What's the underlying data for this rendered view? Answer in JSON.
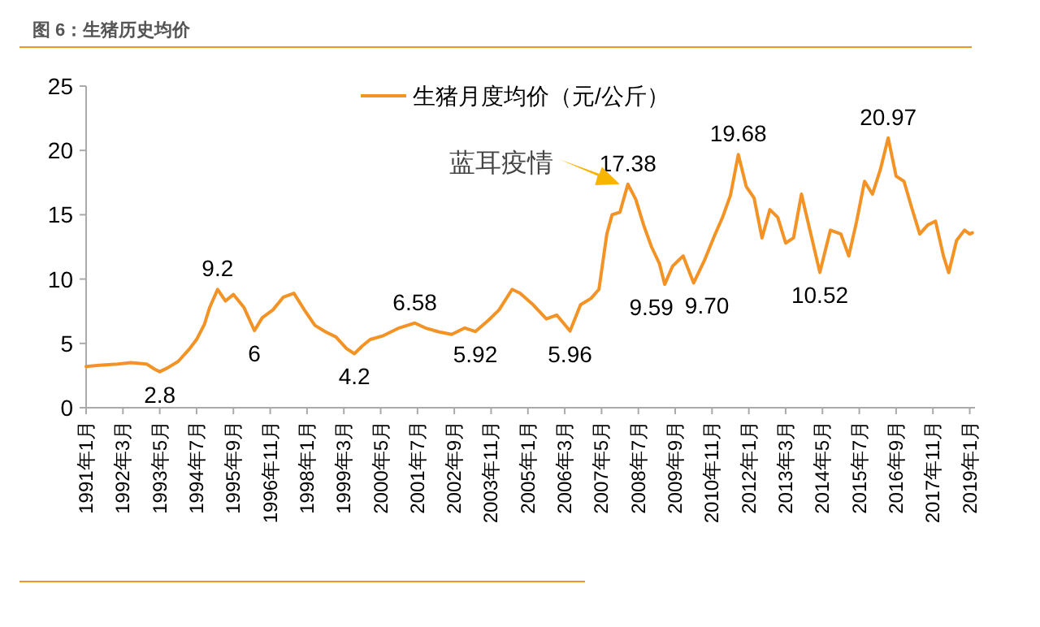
{
  "chart_data": {
    "type": "line",
    "title": "图 6：生猪历史均价",
    "x": [
      "1991-01",
      "1991-06",
      "1992-01",
      "1992-06",
      "1992-12",
      "1993-03",
      "1993-05",
      "1993-08",
      "1993-12",
      "1994-04",
      "1994-07",
      "1994-10",
      "1994-12",
      "1995-03",
      "1995-06",
      "1995-09",
      "1996-01",
      "1996-05",
      "1996-08",
      "1996-12",
      "1997-04",
      "1997-08",
      "1997-12",
      "1998-04",
      "1998-08",
      "1998-12",
      "1999-04",
      "1999-07",
      "1999-10",
      "2000-01",
      "2000-06",
      "2000-12",
      "2001-06",
      "2001-10",
      "2002-03",
      "2002-08",
      "2003-01",
      "2003-05",
      "2003-10",
      "2004-02",
      "2004-07",
      "2004-10",
      "2005-03",
      "2005-08",
      "2005-12",
      "2006-05",
      "2006-09",
      "2007-01",
      "2007-04",
      "2007-07",
      "2007-09",
      "2007-12",
      "2008-03",
      "2008-06",
      "2008-09",
      "2008-12",
      "2009-03",
      "2009-05",
      "2009-08",
      "2009-12",
      "2010-04",
      "2010-08",
      "2010-12",
      "2011-03",
      "2011-06",
      "2011-09",
      "2011-12",
      "2012-03",
      "2012-06",
      "2012-09",
      "2012-12",
      "2013-03",
      "2013-06",
      "2013-09",
      "2013-12",
      "2014-04",
      "2014-08",
      "2014-12",
      "2015-03",
      "2015-06",
      "2015-09",
      "2015-12",
      "2016-03",
      "2016-06",
      "2016-09",
      "2016-12",
      "2017-03",
      "2017-06",
      "2017-09",
      "2017-12",
      "2018-03",
      "2018-05",
      "2018-08",
      "2018-11",
      "2019-01",
      "2019-02"
    ],
    "series": [
      {
        "name": "生猪月度均价（元/公斤）",
        "color": "#f39325",
        "values": [
          3.2,
          3.3,
          3.4,
          3.5,
          3.4,
          3.0,
          2.8,
          3.1,
          3.6,
          4.5,
          5.3,
          6.5,
          7.8,
          9.2,
          8.3,
          8.8,
          7.8,
          6.0,
          7.0,
          7.6,
          8.6,
          8.9,
          7.6,
          6.4,
          5.9,
          5.5,
          4.6,
          4.2,
          4.8,
          5.3,
          5.6,
          6.2,
          6.58,
          6.2,
          5.9,
          5.7,
          6.2,
          5.92,
          6.8,
          7.6,
          9.2,
          8.9,
          8.0,
          6.9,
          7.2,
          5.96,
          8.0,
          8.5,
          9.2,
          13.5,
          15.0,
          15.2,
          17.38,
          16.2,
          14.2,
          12.5,
          11.2,
          9.59,
          11.0,
          11.8,
          9.7,
          11.4,
          13.4,
          14.8,
          16.5,
          19.68,
          17.2,
          16.3,
          13.2,
          15.4,
          14.8,
          12.8,
          13.2,
          16.6,
          14.0,
          10.52,
          13.8,
          13.5,
          11.8,
          14.5,
          17.6,
          16.6,
          18.5,
          20.97,
          18.0,
          17.6,
          15.5,
          13.5,
          14.2,
          14.5,
          11.8,
          10.5,
          13.0,
          13.8,
          13.5,
          13.6
        ]
      }
    ],
    "xlim": [
      "1991-01",
      "2019-03"
    ],
    "xticks": [
      {
        "value": "1991-01",
        "label": "1991年1月"
      },
      {
        "value": "1992-03",
        "label": "1992年3月"
      },
      {
        "value": "1993-05",
        "label": "1993年5月"
      },
      {
        "value": "1994-07",
        "label": "1994年7月"
      },
      {
        "value": "1995-09",
        "label": "1995年9月"
      },
      {
        "value": "1996-11",
        "label": "1996年11月"
      },
      {
        "value": "1998-01",
        "label": "1998年1月"
      },
      {
        "value": "1999-03",
        "label": "1999年3月"
      },
      {
        "value": "2000-05",
        "label": "2000年5月"
      },
      {
        "value": "2001-07",
        "label": "2001年7月"
      },
      {
        "value": "2002-09",
        "label": "2002年9月"
      },
      {
        "value": "2003-11",
        "label": "2003年11月"
      },
      {
        "value": "2005-01",
        "label": "2005年1月"
      },
      {
        "value": "2006-03",
        "label": "2006年3月"
      },
      {
        "value": "2007-05",
        "label": "2007年5月"
      },
      {
        "value": "2008-07",
        "label": "2008年7月"
      },
      {
        "value": "2009-09",
        "label": "2009年9月"
      },
      {
        "value": "2010-11",
        "label": "2010年11月"
      },
      {
        "value": "2012-01",
        "label": "2012年1月"
      },
      {
        "value": "2013-03",
        "label": "2013年3月"
      },
      {
        "value": "2014-05",
        "label": "2014年5月"
      },
      {
        "value": "2015-07",
        "label": "2015年7月"
      },
      {
        "value": "2016-09",
        "label": "2016年9月"
      },
      {
        "value": "2017-11",
        "label": "2017年11月"
      },
      {
        "value": "2019-01",
        "label": "2019年1月"
      }
    ],
    "ylim": [
      0,
      25
    ],
    "yticks": [
      0,
      5,
      10,
      15,
      20,
      25
    ],
    "grid": false,
    "legend": "top",
    "marker": "none",
    "line_style": "solid",
    "annotations": [
      {
        "text": "2.8",
        "x": "1993-05",
        "y": 2.8
      },
      {
        "text": "9.2",
        "x": "1995-03",
        "y": 9.2
      },
      {
        "text": "6",
        "x": "1996-05",
        "y": 6.0
      },
      {
        "text": "4.2",
        "x": "1999-07",
        "y": 4.2
      },
      {
        "text": "6.58",
        "x": "2001-06",
        "y": 6.58
      },
      {
        "text": "5.92",
        "x": "2003-05",
        "y": 5.92
      },
      {
        "text": "5.96",
        "x": "2006-05",
        "y": 5.96
      },
      {
        "text": "17.38",
        "x": "2008-03",
        "y": 17.38
      },
      {
        "text": "9.59",
        "x": "2009-05",
        "y": 9.59
      },
      {
        "text": "9.70",
        "x": "2010-04",
        "y": 9.7
      },
      {
        "text": "19.68",
        "x": "2011-09",
        "y": 19.68
      },
      {
        "text": "10.52",
        "x": "2014-04",
        "y": 10.52
      },
      {
        "text": "20.97",
        "x": "2016-06",
        "y": 20.97
      },
      {
        "text": "蓝耳疫情",
        "x": "2008-03",
        "y": 17.38
      }
    ]
  }
}
